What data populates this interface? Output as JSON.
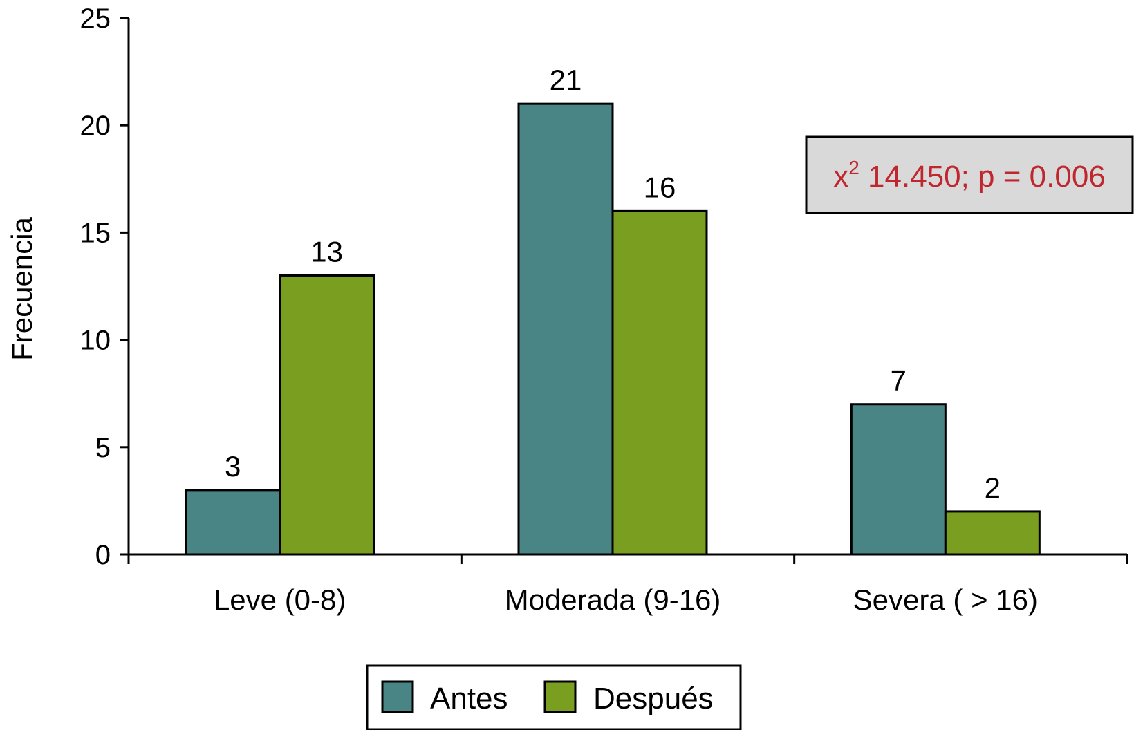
{
  "chart_data": {
    "type": "bar",
    "title": "",
    "xlabel": "",
    "ylabel": "Frecuencia",
    "categories": [
      "Leve (0-8)",
      "Moderada (9-16)",
      "Severa ( > 16)"
    ],
    "series": [
      {
        "name": "Antes",
        "color": "#4a8585",
        "values": [
          3,
          21,
          7
        ]
      },
      {
        "name": "Después",
        "color": "#7a9e1f",
        "values": [
          13,
          16,
          2
        ]
      }
    ],
    "ylim": [
      0,
      25
    ],
    "yticks": [
      0,
      5,
      10,
      15,
      20,
      25
    ],
    "grid": false,
    "legend": "bottom-center",
    "annotation": {
      "symbol": "x",
      "superscript": "2",
      "text": " 14.450; p = 0.006",
      "text_color": "#c0262d",
      "box_color": "#d9d9d9",
      "placement": "top-right"
    }
  }
}
